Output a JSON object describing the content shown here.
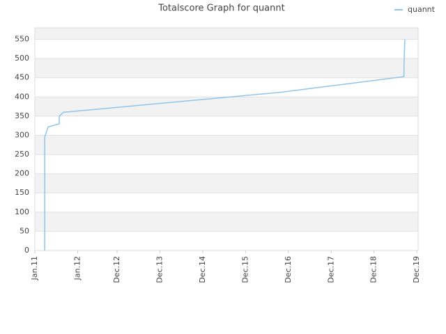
{
  "chart_data": {
    "type": "line",
    "title": "Totalscore Graph for quannt",
    "series": [
      {
        "name": "quannt",
        "color": "#8ec4ea",
        "x": [
          2011.23,
          2011.23,
          2011.31,
          2011.57,
          2011.57,
          2011.67,
          2016.73,
          2019.62,
          2019.62,
          2019.64
        ],
        "values": [
          0,
          295,
          322,
          330,
          350,
          360,
          412,
          453,
          480,
          550
        ]
      }
    ],
    "xlim": [
      2011.0,
      2019.95
    ],
    "xticks": [
      {
        "value": 2011.0,
        "label": "Jan.11"
      },
      {
        "value": 2012.0,
        "label": "Jan.12"
      },
      {
        "value": 2012.92,
        "label": "Dec.12"
      },
      {
        "value": 2013.92,
        "label": "Dec.13"
      },
      {
        "value": 2014.92,
        "label": "Dec.14"
      },
      {
        "value": 2015.92,
        "label": "Dec.15"
      },
      {
        "value": 2016.92,
        "label": "Dec.16"
      },
      {
        "value": 2017.92,
        "label": "Dec.17"
      },
      {
        "value": 2018.92,
        "label": "Dec.18"
      },
      {
        "value": 2019.92,
        "label": "Dec.19"
      }
    ],
    "ylim": [
      0,
      580
    ],
    "yticks": [
      0,
      50,
      100,
      150,
      200,
      250,
      300,
      350,
      400,
      450,
      500,
      550
    ],
    "grid": true,
    "band_color": "#f2f2f2",
    "legend": "top-right"
  }
}
